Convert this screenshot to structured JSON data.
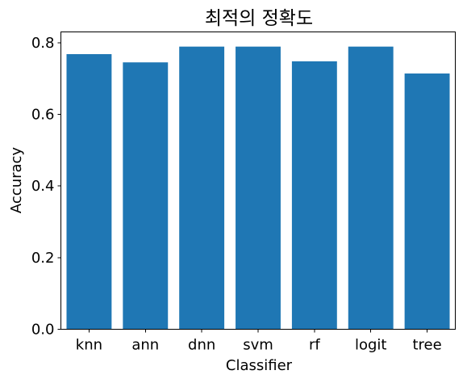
{
  "chart_data": {
    "type": "bar",
    "title": "최적의 정확도",
    "xlabel": "Classifier",
    "ylabel": "Accuracy",
    "categories": [
      "knn",
      "ann",
      "dnn",
      "svm",
      "rf",
      "logit",
      "tree"
    ],
    "values": [
      0.768,
      0.745,
      0.789,
      0.789,
      0.748,
      0.789,
      0.714
    ],
    "ylim": [
      0,
      0.83
    ],
    "yticks": [
      0.0,
      0.2,
      0.4,
      0.6,
      0.8
    ],
    "ytick_labels": [
      "0.0",
      "0.2",
      "0.4",
      "0.6",
      "0.8"
    ],
    "bar_color": "#1f77b4",
    "grid": false,
    "legend": "none"
  }
}
